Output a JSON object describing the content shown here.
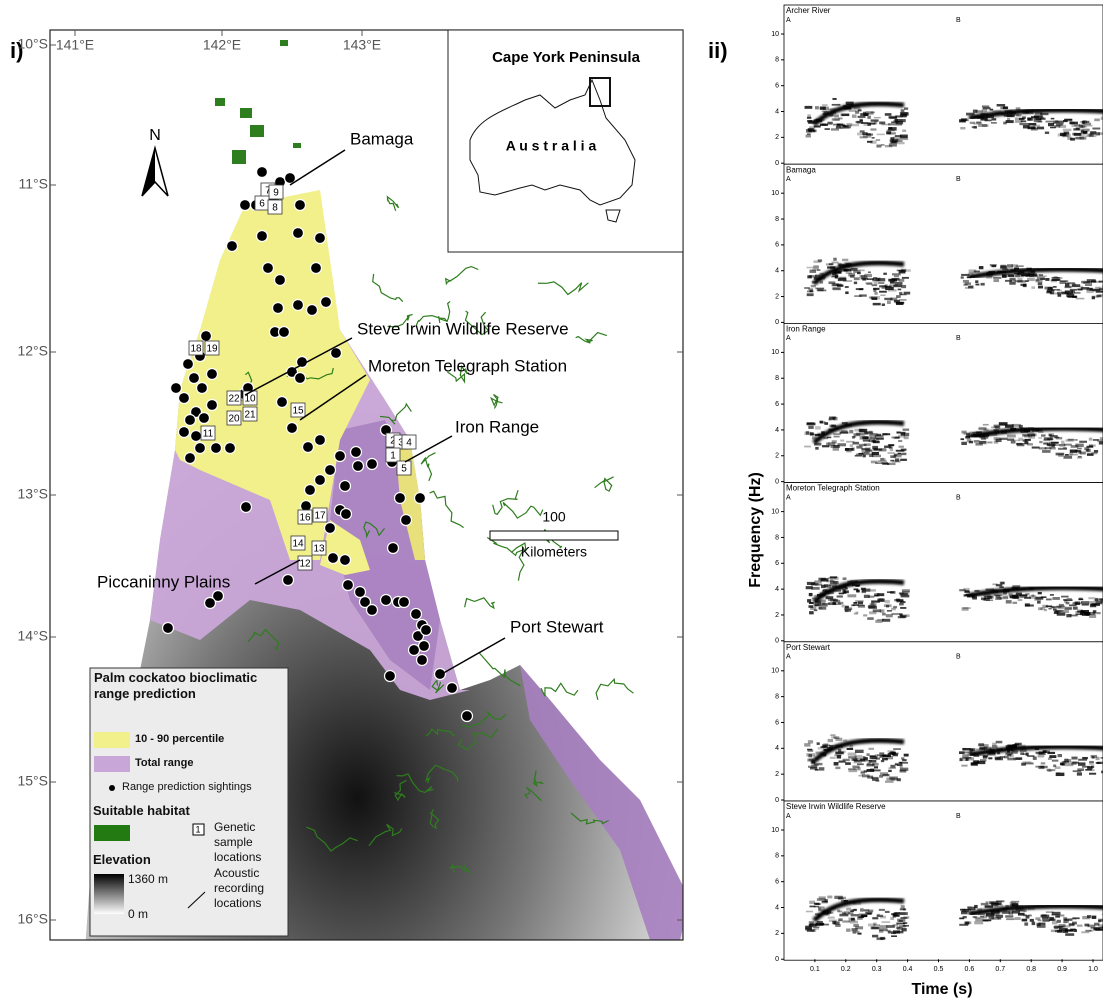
{
  "panel_labels": [
    "i)",
    "ii)"
  ],
  "map": {
    "longitudes": [
      "141°E",
      "142°E",
      "143°E"
    ],
    "latitudes": [
      "10°S",
      "11°S",
      "12°S",
      "13°S",
      "14°S",
      "15°S",
      "16°S"
    ],
    "north": "N",
    "places": [
      "Bamaga",
      "Steve Irwin Wildlife Reserve",
      "Moreton Telegraph Station",
      "Iron Range",
      "Piccaninny Plains",
      "Port Stewart"
    ],
    "sample_ids": [
      7,
      9,
      6,
      8,
      18,
      19,
      22,
      10,
      20,
      21,
      11,
      15,
      2,
      3,
      4,
      1,
      5,
      16,
      17,
      14,
      13,
      12
    ],
    "scale": {
      "distance": "100",
      "unit": "Kilometers"
    },
    "inset": {
      "title": "Cape York Peninsula",
      "country": "A u s t r a l i a"
    },
    "legend": {
      "title": "Palm cockatoo bioclimatic range prediction",
      "percentile": "10 - 90 percentile",
      "total": "Total range",
      "sightings": "Range prediction sightings",
      "habitat": "Suitable habitat",
      "genetic": "Genetic sample locations",
      "elevation": "Elevation",
      "elev_max": "1360 m",
      "elev_min": "0 m",
      "acoustic": "Acoustic recording locations"
    }
  },
  "spectrograms": {
    "panels": [
      {
        "title": "Archer River",
        "a": "A",
        "b": "B"
      },
      {
        "title": "Bamaga",
        "a": "A",
        "b": "B"
      },
      {
        "title": "Iron Range",
        "a": "A",
        "b": "B"
      },
      {
        "title": "Moreton Telegraph Station",
        "a": "A",
        "b": "B"
      },
      {
        "title": "Port Stewart",
        "a": "A",
        "b": "B"
      },
      {
        "title": "Steve Irwin Wildlife Reserve",
        "a": "A",
        "b": "B"
      }
    ],
    "yticks": [
      0,
      2,
      4,
      6,
      8,
      10
    ],
    "xticks": [
      0.1,
      0.2,
      0.3,
      0.4,
      0.5,
      0.6,
      0.7,
      0.8,
      0.9,
      {
        "value": 1,
        "label": "1.0"
      }
    ],
    "ylabel": "Frequency (Hz)",
    "xlabel": "Time (s)"
  }
}
